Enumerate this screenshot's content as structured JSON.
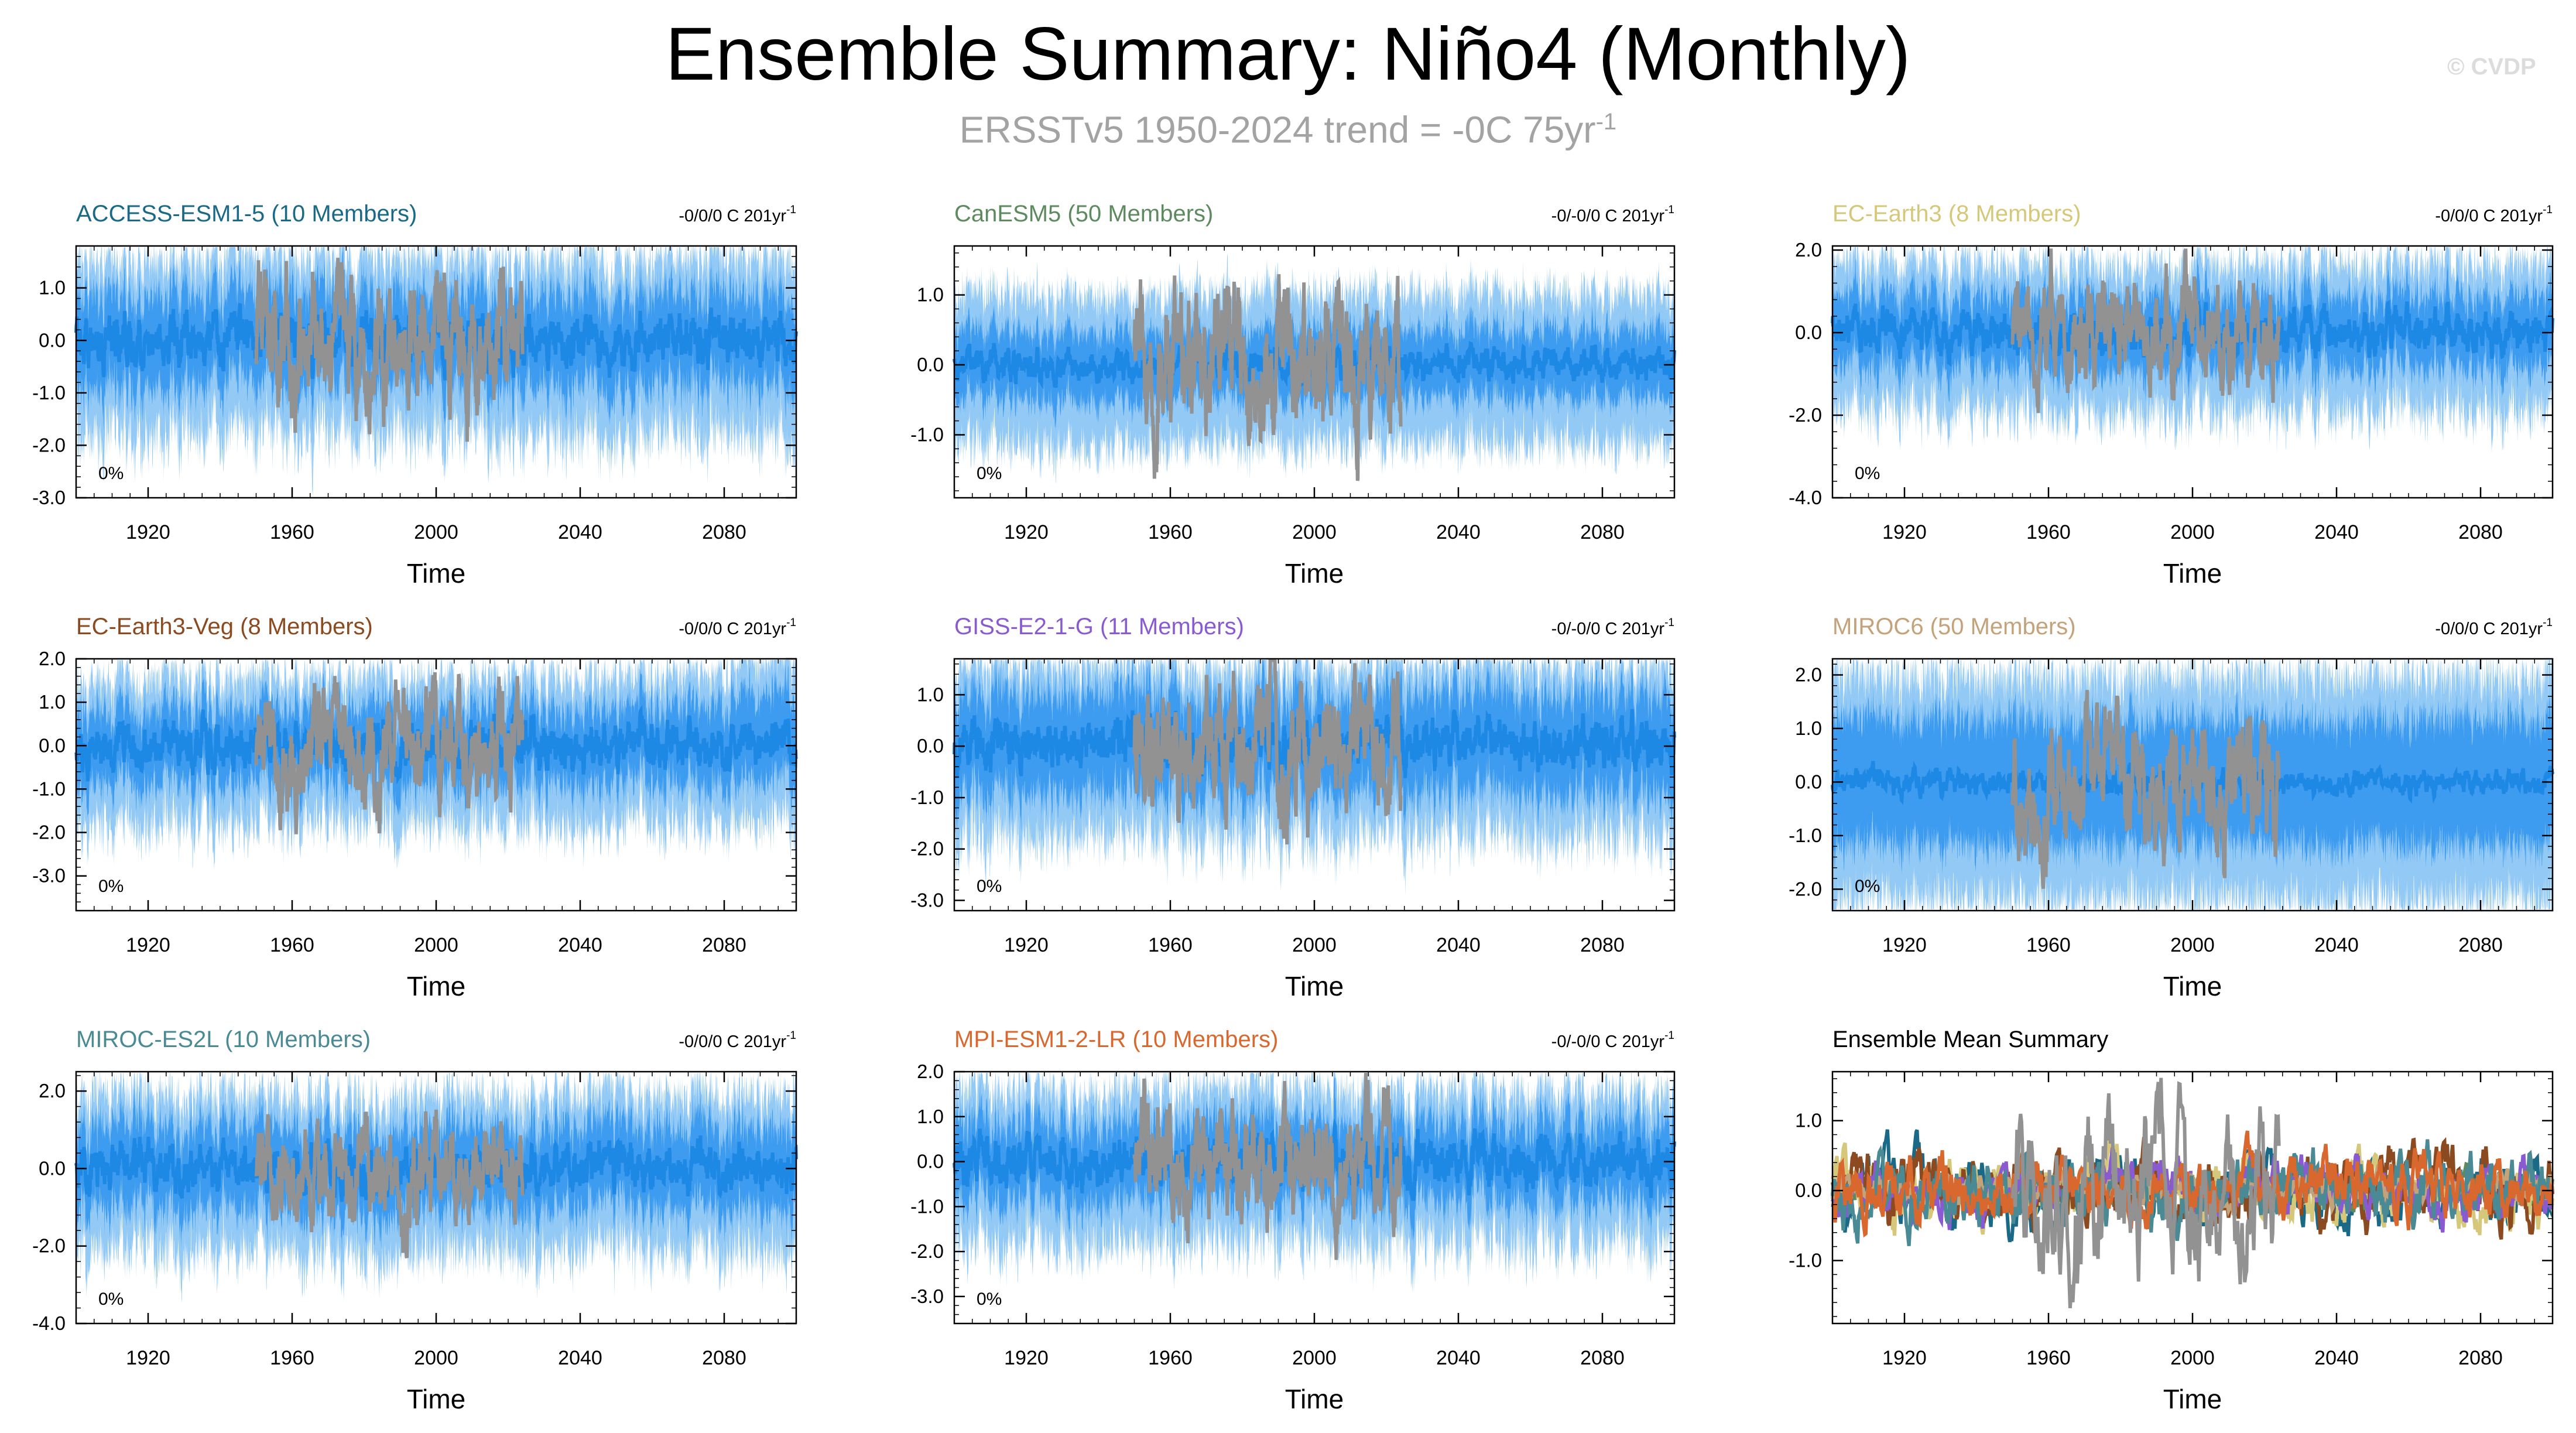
{
  "title": "Ensemble Summary: Niño4 (Monthly)",
  "subtitle": {
    "text": "ERSSTv5 1950-2024 trend = -0C 75yr",
    "superscript": "-1"
  },
  "watermark": "© CVDP",
  "colors": {
    "ensemble_mean": "#1e88e5",
    "spread_inner": "#3d9cf0",
    "spread_outer": "#93c9f5",
    "observations": "#929292"
  },
  "chart_data": [
    {
      "type": "line",
      "id": "access-esm1-5",
      "title": "ACCESS-ESM1-5 (10 Members)",
      "title_color": "#1a6a87",
      "trend_text": "-0/0/0 C 201yr",
      "trend_sup": "-1",
      "percent_label": "0%",
      "xlabel": "Time",
      "ylabel": "",
      "xlim": [
        1900,
        2100
      ],
      "ylim": [
        -3.0,
        1.8
      ],
      "xticks": [
        1920,
        1960,
        2000,
        2040,
        2080
      ],
      "xtick_labels": [
        "1920",
        "1960",
        "2000",
        "2040",
        "2080"
      ],
      "yticks": [
        -3.0,
        -2.0,
        -1.0,
        0.0,
        1.0
      ],
      "ytick_labels": [
        "-3.0",
        "-2.0",
        "-1.0",
        "0.0",
        "1.0"
      ],
      "series": [
        {
          "name": "Ensemble spread",
          "values": {
            "mean_amp": 0.45,
            "inner": 0.9,
            "outer": 1.6,
            "start": 1900,
            "end": 2100
          }
        },
        {
          "name": "ERSSTv5 observations",
          "values": {
            "amp": 1.4,
            "start": 1950,
            "end": 2024
          }
        }
      ]
    },
    {
      "type": "line",
      "id": "canesm5",
      "title": "CanESM5 (50 Members)",
      "title_color": "#5d8a5f",
      "trend_text": "-0/-0/0 C 201yr",
      "trend_sup": "-1",
      "percent_label": "0%",
      "xlabel": "Time",
      "ylabel": "",
      "xlim": [
        1900,
        2100
      ],
      "ylim": [
        -1.9,
        1.7
      ],
      "xticks": [
        1920,
        1960,
        2000,
        2040,
        2080
      ],
      "xtick_labels": [
        "1920",
        "1960",
        "2000",
        "2040",
        "2080"
      ],
      "yticks": [
        -1.0,
        0.0,
        1.0
      ],
      "ytick_labels": [
        "-1.0",
        "0.0",
        "1.0"
      ],
      "series": [
        {
          "name": "Ensemble spread",
          "values": {
            "mean_amp": 0.2,
            "inner": 0.5,
            "outer": 1.0,
            "start": 1900,
            "end": 2100
          }
        },
        {
          "name": "ERSSTv5 observations",
          "values": {
            "amp": 1.2,
            "start": 1950,
            "end": 2024
          }
        }
      ]
    },
    {
      "type": "line",
      "id": "ec-earth3",
      "title": "EC-Earth3 (8 Members)",
      "title_color": "#d6c87a",
      "trend_text": "-0/0/0 C 201yr",
      "trend_sup": "-1",
      "percent_label": "0%",
      "xlabel": "Time",
      "ylabel": "",
      "xlim": [
        1900,
        2100
      ],
      "ylim": [
        -4.0,
        2.1
      ],
      "xticks": [
        1920,
        1960,
        2000,
        2040,
        2080
      ],
      "xtick_labels": [
        "1920",
        "1960",
        "2000",
        "2040",
        "2080"
      ],
      "yticks": [
        -4.0,
        -2.0,
        0.0,
        2.0
      ],
      "ytick_labels": [
        "-4.0",
        "-2.0",
        "0.0",
        "2.0"
      ],
      "series": [
        {
          "name": "Ensemble spread",
          "values": {
            "mean_amp": 0.45,
            "inner": 0.9,
            "outer": 1.7,
            "start": 1900,
            "end": 2100
          }
        },
        {
          "name": "ERSSTv5 observations",
          "values": {
            "amp": 1.4,
            "start": 1950,
            "end": 2024
          }
        }
      ]
    },
    {
      "type": "line",
      "id": "ec-earth3-veg",
      "title": "EC-Earth3-Veg (8 Members)",
      "title_color": "#8b4a1f",
      "trend_text": "-0/0/0 C 201yr",
      "trend_sup": "-1",
      "percent_label": "0%",
      "xlabel": "Time",
      "ylabel": "",
      "xlim": [
        1900,
        2100
      ],
      "ylim": [
        -3.8,
        2.0
      ],
      "xticks": [
        1920,
        1960,
        2000,
        2040,
        2080
      ],
      "xtick_labels": [
        "1920",
        "1960",
        "2000",
        "2040",
        "2080"
      ],
      "yticks": [
        -3.0,
        -2.0,
        -1.0,
        0.0,
        1.0,
        2.0
      ],
      "ytick_labels": [
        "-3.0",
        "-2.0",
        "-1.0",
        "0.0",
        "1.0",
        "2.0"
      ],
      "series": [
        {
          "name": "Ensemble spread",
          "values": {
            "mean_amp": 0.5,
            "inner": 0.9,
            "outer": 1.6,
            "start": 1900,
            "end": 2100
          }
        },
        {
          "name": "ERSSTv5 observations",
          "values": {
            "amp": 1.4,
            "start": 1950,
            "end": 2024
          }
        }
      ]
    },
    {
      "type": "line",
      "id": "giss-e2-1-g",
      "title": "GISS-E2-1-G (11 Members)",
      "title_color": "#8a5bd0",
      "trend_text": "-0/-0/0 C 201yr",
      "trend_sup": "-1",
      "percent_label": "0%",
      "xlabel": "Time",
      "ylabel": "",
      "xlim": [
        1900,
        2100
      ],
      "ylim": [
        -3.2,
        1.7
      ],
      "xticks": [
        1920,
        1960,
        2000,
        2040,
        2080
      ],
      "xtick_labels": [
        "1920",
        "1960",
        "2000",
        "2040",
        "2080"
      ],
      "yticks": [
        -3.0,
        -2.0,
        -1.0,
        0.0,
        1.0
      ],
      "ytick_labels": [
        "-3.0",
        "-2.0",
        "-1.0",
        "0.0",
        "1.0"
      ],
      "series": [
        {
          "name": "Ensemble spread",
          "values": {
            "mean_amp": 0.45,
            "inner": 1.0,
            "outer": 1.6,
            "start": 1900,
            "end": 2100
          }
        },
        {
          "name": "ERSSTv5 observations",
          "values": {
            "amp": 1.4,
            "start": 1950,
            "end": 2024
          }
        }
      ]
    },
    {
      "type": "line",
      "id": "miroc6",
      "title": "MIROC6 (50 Members)",
      "title_color": "#c4a27a",
      "trend_text": "-0/0/0 C 201yr",
      "trend_sup": "-1",
      "percent_label": "0%",
      "xlabel": "Time",
      "ylabel": "",
      "xlim": [
        1900,
        2100
      ],
      "ylim": [
        -2.4,
        2.3
      ],
      "xticks": [
        1920,
        1960,
        2000,
        2040,
        2080
      ],
      "xtick_labels": [
        "1920",
        "1960",
        "2000",
        "2040",
        "2080"
      ],
      "yticks": [
        -2.0,
        -1.0,
        0.0,
        1.0,
        2.0
      ],
      "ytick_labels": [
        "-2.0",
        "-1.0",
        "0.0",
        "1.0",
        "2.0"
      ],
      "series": [
        {
          "name": "Ensemble spread",
          "values": {
            "mean_amp": 0.2,
            "inner": 1.2,
            "outer": 2.0,
            "start": 1900,
            "end": 2100
          }
        },
        {
          "name": "ERSSTv5 observations",
          "values": {
            "amp": 1.3,
            "start": 1950,
            "end": 2024
          }
        }
      ]
    },
    {
      "type": "line",
      "id": "miroc-es2l",
      "title": "MIROC-ES2L (10 Members)",
      "title_color": "#4a8a94",
      "trend_text": "-0/0/0 C 201yr",
      "trend_sup": "-1",
      "percent_label": "0%",
      "xlabel": "Time",
      "ylabel": "",
      "xlim": [
        1900,
        2100
      ],
      "ylim": [
        -4.0,
        2.5
      ],
      "xticks": [
        1920,
        1960,
        2000,
        2040,
        2080
      ],
      "xtick_labels": [
        "1920",
        "1960",
        "2000",
        "2040",
        "2080"
      ],
      "yticks": [
        -4.0,
        -2.0,
        0.0,
        2.0
      ],
      "ytick_labels": [
        "-4.0",
        "-2.0",
        "0.0",
        "2.0"
      ],
      "series": [
        {
          "name": "Ensemble spread",
          "values": {
            "mean_amp": 0.55,
            "inner": 1.1,
            "outer": 1.9,
            "start": 1900,
            "end": 2100
          }
        },
        {
          "name": "ERSSTv5 observations",
          "values": {
            "amp": 1.4,
            "start": 1950,
            "end": 2024
          }
        }
      ]
    },
    {
      "type": "line",
      "id": "mpi-esm1-2-lr",
      "title": "MPI-ESM1-2-LR (10 Members)",
      "title_color": "#d9682e",
      "trend_text": "-0/-0/0 C 201yr",
      "trend_sup": "-1",
      "percent_label": "0%",
      "xlabel": "Time",
      "ylabel": "",
      "xlim": [
        1900,
        2100
      ],
      "ylim": [
        -3.6,
        2.0
      ],
      "xticks": [
        1920,
        1960,
        2000,
        2040,
        2080
      ],
      "xtick_labels": [
        "1920",
        "1960",
        "2000",
        "2040",
        "2080"
      ],
      "yticks": [
        -3.0,
        -2.0,
        -1.0,
        0.0,
        1.0,
        2.0
      ],
      "ytick_labels": [
        "-3.0",
        "-2.0",
        "-1.0",
        "0.0",
        "1.0",
        "2.0"
      ],
      "series": [
        {
          "name": "Ensemble spread",
          "values": {
            "mean_amp": 0.5,
            "inner": 0.9,
            "outer": 1.6,
            "start": 1900,
            "end": 2100
          }
        },
        {
          "name": "ERSSTv5 observations",
          "values": {
            "amp": 1.4,
            "start": 1950,
            "end": 2024
          }
        }
      ]
    },
    {
      "type": "line",
      "id": "ensemble-mean-summary",
      "title": "Ensemble Mean Summary",
      "title_color": "#000000",
      "trend_text": "",
      "trend_sup": "",
      "percent_label": "",
      "xlabel": "Time",
      "ylabel": "",
      "xlim": [
        1900,
        2100
      ],
      "ylim": [
        -1.9,
        1.7
      ],
      "xticks": [
        1920,
        1960,
        2000,
        2040,
        2080
      ],
      "xtick_labels": [
        "1920",
        "1960",
        "2000",
        "2040",
        "2080"
      ],
      "yticks": [
        -1.0,
        0.0,
        1.0
      ],
      "ytick_labels": [
        "-1.0",
        "0.0",
        "1.0"
      ],
      "series": [
        {
          "name": "ACCESS-ESM1-5",
          "color": "#1a6a87",
          "values": {
            "amp": 0.5
          }
        },
        {
          "name": "CanESM5",
          "color": "#5d8a5f",
          "values": {
            "amp": 0.25
          }
        },
        {
          "name": "EC-Earth3",
          "color": "#d6c87a",
          "values": {
            "amp": 0.5
          }
        },
        {
          "name": "EC-Earth3-Veg",
          "color": "#8b4a1f",
          "values": {
            "amp": 0.55
          }
        },
        {
          "name": "GISS-E2-1-G",
          "color": "#8a5bd0",
          "values": {
            "amp": 0.45
          }
        },
        {
          "name": "MIROC6",
          "color": "#c4a27a",
          "values": {
            "amp": 0.25
          }
        },
        {
          "name": "MIROC-ES2L",
          "color": "#4a8a94",
          "values": {
            "amp": 0.55
          }
        },
        {
          "name": "MPI-ESM1-2-LR",
          "color": "#d9682e",
          "values": {
            "amp": 0.5
          }
        },
        {
          "name": "ERSSTv5 observations",
          "color": "#929292",
          "values": {
            "amp": 1.3,
            "start": 1950,
            "end": 2024
          }
        }
      ]
    }
  ]
}
